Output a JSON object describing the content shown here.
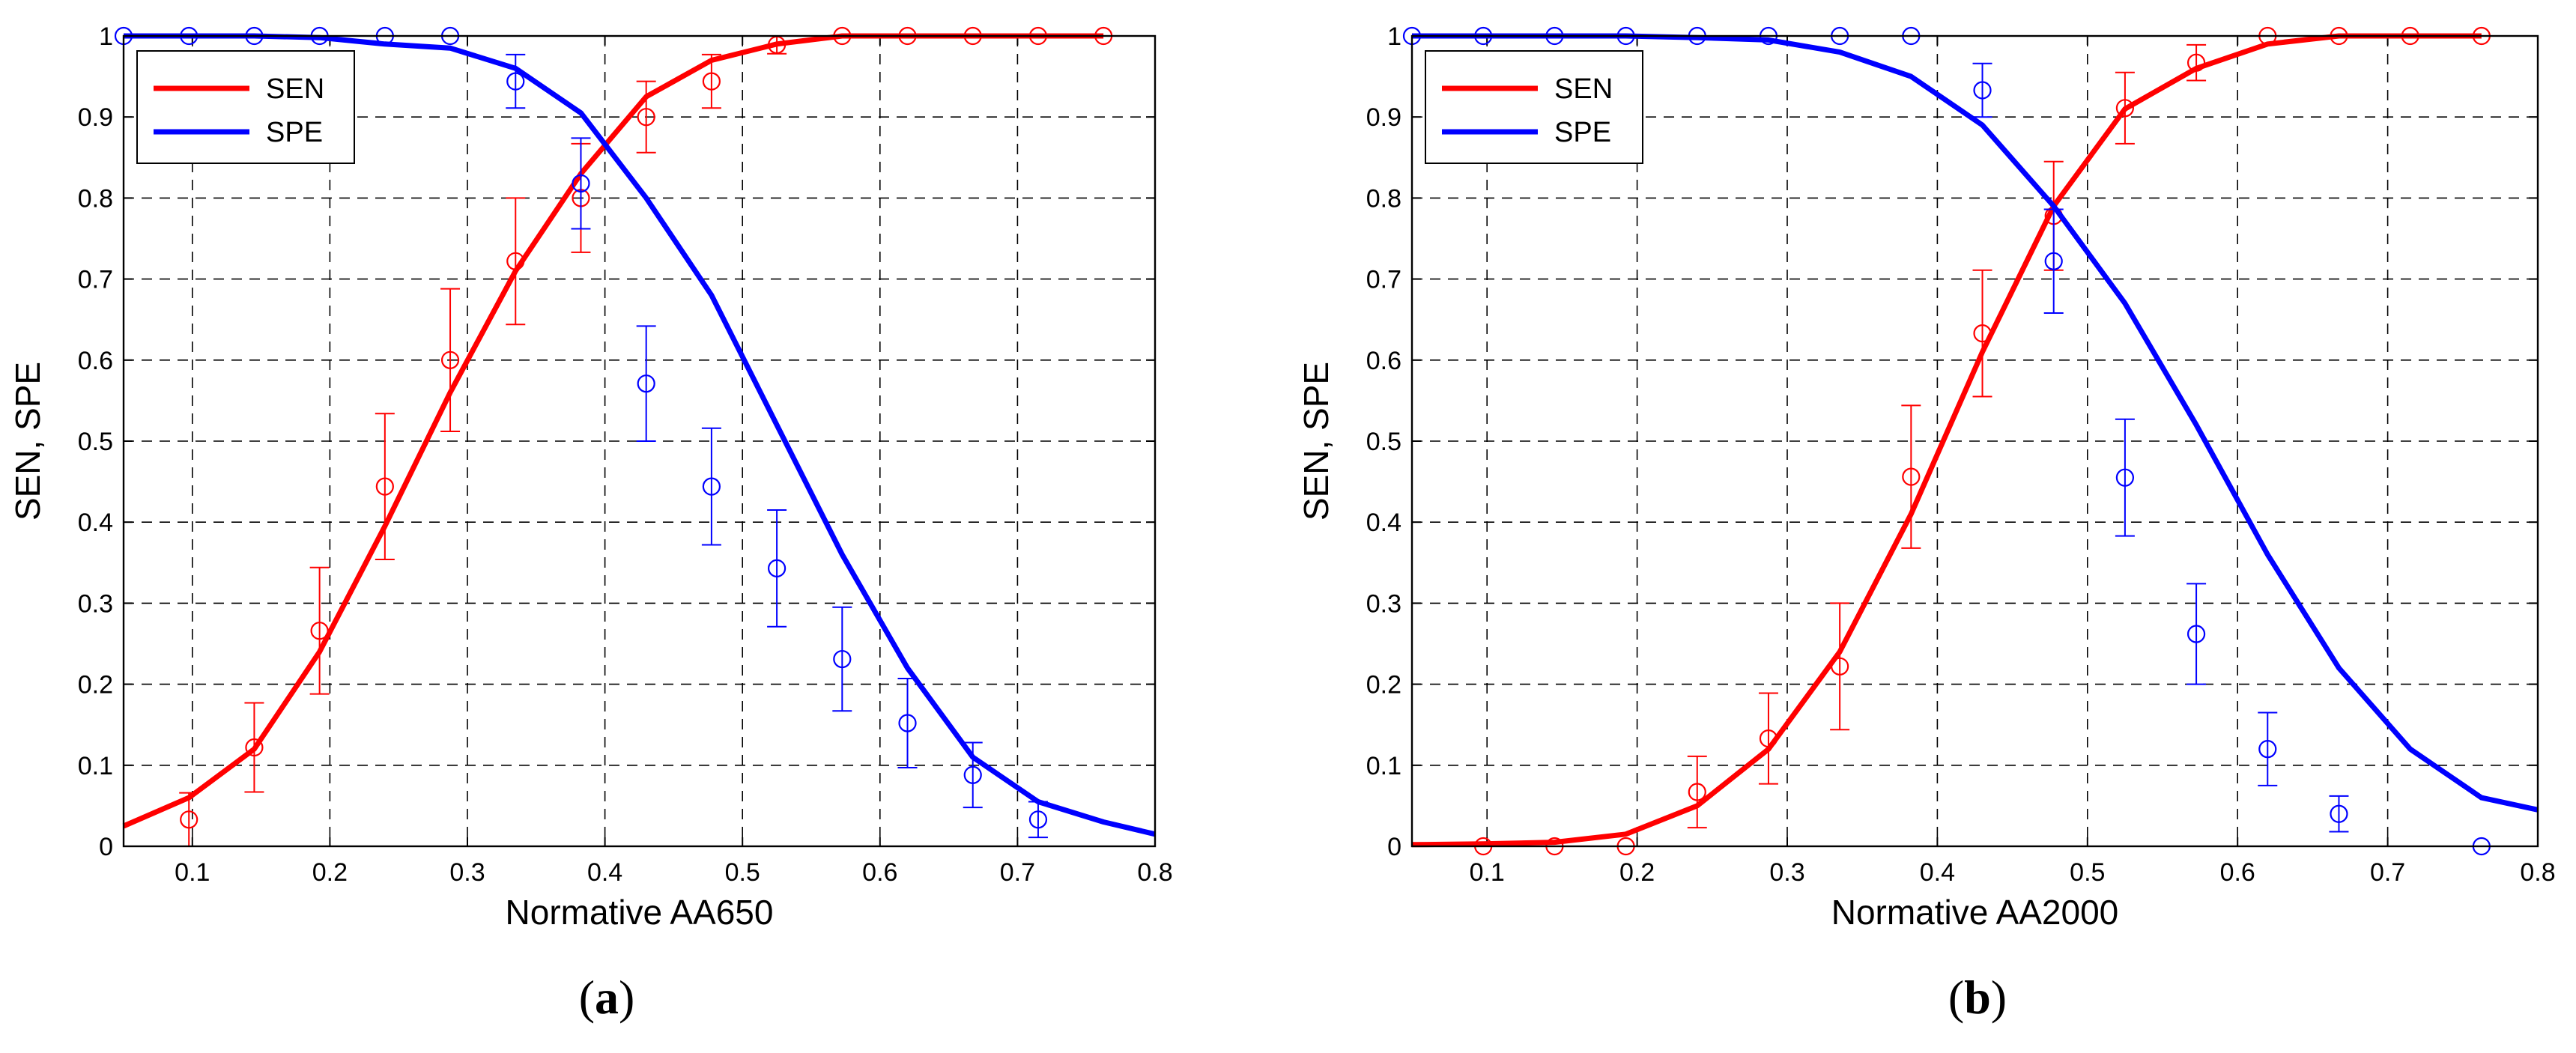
{
  "colors": {
    "sen": "#ff0000",
    "spe": "#0000ff",
    "grid": "#000000"
  },
  "chart_data": [
    {
      "type": "line",
      "caption_letter": "a",
      "xlabel": "Normative AA650",
      "ylabel": "SEN, SPE",
      "xlim": [
        0.05,
        0.8
      ],
      "ylim": [
        0,
        1
      ],
      "xticks": [
        "0.1",
        "0.2",
        "0.3",
        "0.4",
        "0.5",
        "0.6",
        "0.7",
        "0.8"
      ],
      "yticks": [
        "0",
        "0.1",
        "0.2",
        "0.3",
        "0.4",
        "0.5",
        "0.6",
        "0.7",
        "0.8",
        "0.9",
        "1"
      ],
      "grid": true,
      "legend_position": "top-left",
      "series": [
        {
          "name": "SEN",
          "color": "#ff0000",
          "fit": {
            "x": [
              0.05,
              0.0975,
              0.145,
              0.1925,
              0.24,
              0.2875,
              0.335,
              0.3825,
              0.43,
              0.4775,
              0.525,
              0.5725,
              0.62,
              0.6675,
              0.715,
              0.7625
            ],
            "y": [
              0.025,
              0.06,
              0.12,
              0.24,
              0.395,
              0.56,
              0.71,
              0.83,
              0.925,
              0.97,
              0.99,
              1,
              1,
              1,
              1,
              1
            ]
          },
          "points": {
            "x": [
              0.0975,
              0.145,
              0.1925,
              0.24,
              0.2875,
              0.335,
              0.3825,
              0.43,
              0.4775,
              0.525,
              0.5725,
              0.62,
              0.6675,
              0.715,
              0.7625
            ],
            "y": [
              0.033,
              0.122,
              0.266,
              0.444,
              0.6,
              0.722,
              0.8,
              0.9,
              0.944,
              0.989,
              1,
              1,
              1,
              1,
              1
            ],
            "err": [
              0.033,
              0.055,
              0.078,
              0.09,
              0.088,
              0.078,
              0.067,
              0.044,
              0.033,
              0.011,
              0,
              0,
              0,
              0,
              0
            ]
          }
        },
        {
          "name": "SPE",
          "color": "#0000ff",
          "fit": {
            "x": [
              0.05,
              0.0975,
              0.145,
              0.1925,
              0.24,
              0.2875,
              0.335,
              0.3825,
              0.43,
              0.4775,
              0.525,
              0.5725,
              0.62,
              0.6675,
              0.715,
              0.7625,
              0.8
            ],
            "y": [
              1,
              1,
              1,
              0.998,
              0.99,
              0.985,
              0.96,
              0.905,
              0.8,
              0.68,
              0.52,
              0.36,
              0.22,
              0.11,
              0.055,
              0.03,
              0.015
            ]
          },
          "points": {
            "x": [
              0.05,
              0.0975,
              0.145,
              0.1925,
              0.24,
              0.2875,
              0.335,
              0.3825,
              0.43,
              0.4775,
              0.525,
              0.5725,
              0.62,
              0.6675,
              0.715,
              0.7625
            ],
            "y": [
              1,
              1,
              1,
              1,
              1,
              1,
              0.944,
              0.818,
              0.571,
              0.444,
              0.343,
              0.231,
              0.152,
              0.088,
              0.033,
              0
            ],
            "err": [
              0,
              0,
              0,
              0,
              0,
              0,
              0.033,
              0.056,
              0.071,
              0.072,
              0.072,
              0.064,
              0.055,
              0.04,
              0.022,
              0
            ],
            "shown": [
              1,
              1,
              1,
              1,
              1,
              1,
              1,
              1,
              1,
              1,
              1,
              1,
              1,
              1,
              1,
              0
            ]
          }
        }
      ]
    },
    {
      "type": "line",
      "caption_letter": "b",
      "xlabel": "Normative AA2000",
      "ylabel": "SEN, SPE",
      "xlim": [
        0.05,
        0.8
      ],
      "ylim": [
        0,
        1
      ],
      "xticks": [
        "0.1",
        "0.2",
        "0.3",
        "0.4",
        "0.5",
        "0.6",
        "0.7",
        "0.8"
      ],
      "yticks": [
        "0",
        "0.1",
        "0.2",
        "0.3",
        "0.4",
        "0.5",
        "0.6",
        "0.7",
        "0.8",
        "0.9",
        "1"
      ],
      "grid": true,
      "legend_position": "top-left",
      "series": [
        {
          "name": "SEN",
          "color": "#ff0000",
          "fit": {
            "x": [
              0.05,
              0.0975,
              0.145,
              0.1925,
              0.24,
              0.2875,
              0.335,
              0.3825,
              0.43,
              0.4775,
              0.525,
              0.5725,
              0.62,
              0.6675,
              0.715,
              0.7625
            ],
            "y": [
              0.002,
              0.003,
              0.005,
              0.015,
              0.05,
              0.12,
              0.24,
              0.41,
              0.61,
              0.79,
              0.91,
              0.96,
              0.99,
              1,
              1,
              1
            ]
          },
          "points": {
            "x": [
              0.0975,
              0.145,
              0.1925,
              0.24,
              0.2875,
              0.335,
              0.3825,
              0.43,
              0.4775,
              0.525,
              0.5725,
              0.62,
              0.6675,
              0.715,
              0.7625
            ],
            "y": [
              0,
              0,
              0,
              0.067,
              0.133,
              0.222,
              0.456,
              0.633,
              0.778,
              0.911,
              0.967,
              1,
              1,
              1,
              1
            ],
            "err": [
              0,
              0,
              0,
              0.044,
              0.056,
              0.078,
              0.088,
              0.078,
              0.067,
              0.044,
              0.022,
              0,
              0,
              0,
              0
            ]
          }
        },
        {
          "name": "SPE",
          "color": "#0000ff",
          "fit": {
            "x": [
              0.05,
              0.0975,
              0.145,
              0.1925,
              0.24,
              0.2875,
              0.335,
              0.3825,
              0.43,
              0.4775,
              0.525,
              0.5725,
              0.62,
              0.6675,
              0.715,
              0.7625,
              0.8
            ],
            "y": [
              1,
              1,
              1,
              1,
              0.998,
              0.995,
              0.98,
              0.95,
              0.89,
              0.79,
              0.67,
              0.52,
              0.36,
              0.22,
              0.12,
              0.06,
              0.045
            ]
          },
          "points": {
            "x": [
              0.05,
              0.0975,
              0.145,
              0.1925,
              0.24,
              0.2875,
              0.335,
              0.3825,
              0.43,
              0.4775,
              0.525,
              0.5725,
              0.62,
              0.6675,
              0.715,
              0.7625
            ],
            "y": [
              1,
              1,
              1,
              1,
              1,
              1,
              1,
              1,
              0.933,
              0.722,
              0.455,
              0.262,
              0.12,
              0.04,
              0.04,
              0
            ],
            "err": [
              0,
              0,
              0,
              0,
              0,
              0,
              0,
              0,
              0.033,
              0.064,
              0.072,
              0.062,
              0.045,
              0.022,
              0.02,
              0
            ],
            "shown": [
              1,
              1,
              1,
              1,
              1,
              1,
              1,
              1,
              1,
              1,
              1,
              1,
              1,
              1,
              0,
              1
            ]
          }
        }
      ]
    }
  ]
}
